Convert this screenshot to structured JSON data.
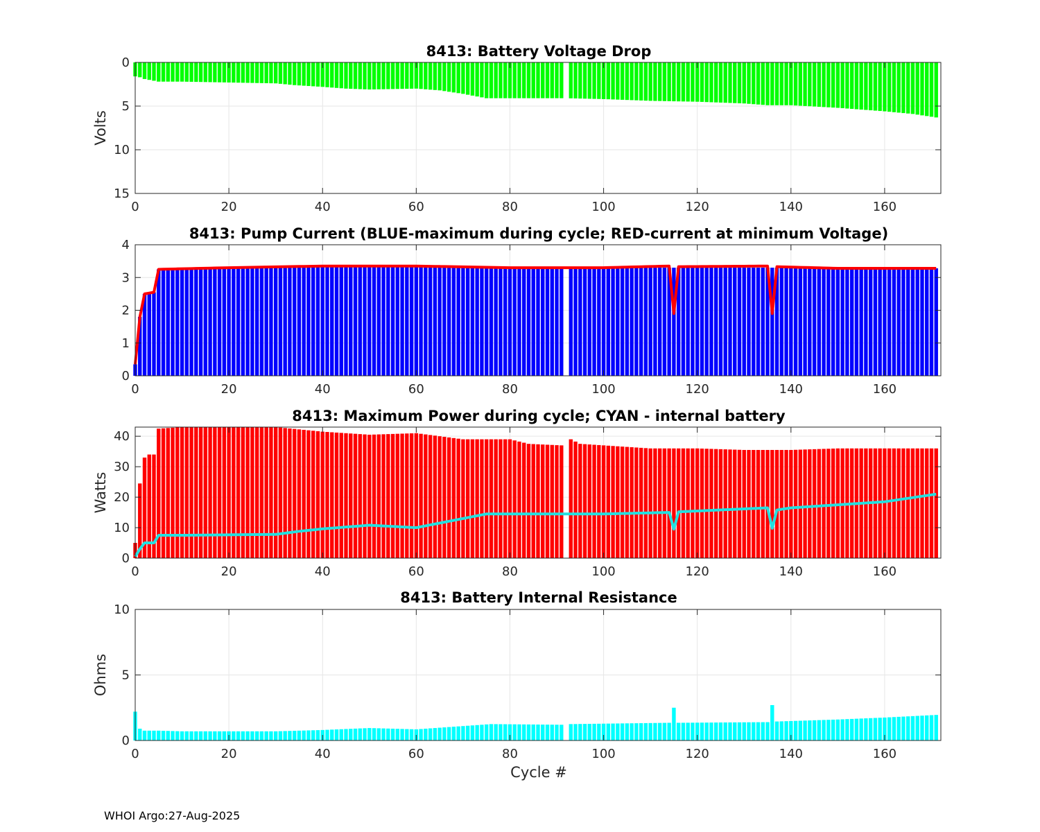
{
  "footer": "WHOI Argo:27-Aug-2025",
  "chart_data": [
    {
      "type": "bar",
      "title": "8413: Battery Voltage Drop",
      "ylabel": "Volts",
      "xlabel": "",
      "xlim": [
        0,
        172
      ],
      "ylim": [
        0,
        15
      ],
      "y_reversed": true,
      "xticks": [
        "0",
        "20",
        "40",
        "60",
        "80",
        "100",
        "120",
        "140",
        "160"
      ],
      "yticks": [
        "0",
        "5",
        "10",
        "15"
      ],
      "grid": true,
      "missing_cycles": [
        92
      ],
      "series": [
        {
          "name": "voltage drop",
          "color": "#00ff00",
          "profile": [
            [
              0,
              1.6
            ],
            [
              1,
              1.7
            ],
            [
              2,
              1.9
            ],
            [
              5,
              2.2
            ],
            [
              10,
              2.2
            ],
            [
              20,
              2.3
            ],
            [
              30,
              2.4
            ],
            [
              34,
              2.6
            ],
            [
              40,
              2.8
            ],
            [
              45,
              3.0
            ],
            [
              50,
              3.1
            ],
            [
              60,
              3.0
            ],
            [
              65,
              3.2
            ],
            [
              70,
              3.6
            ],
            [
              75,
              4.1
            ],
            [
              92,
              4.1
            ],
            [
              100,
              4.2
            ],
            [
              110,
              4.4
            ],
            [
              120,
              4.5
            ],
            [
              130,
              4.7
            ],
            [
              135,
              4.9
            ],
            [
              140,
              4.9
            ],
            [
              150,
              5.2
            ],
            [
              160,
              5.6
            ],
            [
              166,
              5.9
            ],
            [
              171,
              6.3
            ]
          ]
        }
      ]
    },
    {
      "type": "bar",
      "title": "8413: Pump Current (BLUE-maximum during cycle; RED-current at minimum Voltage)",
      "ylabel": "",
      "xlabel": "",
      "xlim": [
        0,
        172
      ],
      "ylim": [
        0,
        4
      ],
      "xticks": [
        "0",
        "20",
        "40",
        "60",
        "80",
        "100",
        "120",
        "140",
        "160"
      ],
      "yticks": [
        "0",
        "1",
        "2",
        "3",
        "4"
      ],
      "grid": true,
      "missing_cycles": [
        92
      ],
      "series": [
        {
          "name": "maximum during cycle",
          "kind": "bar",
          "color": "#0000ff",
          "profile": [
            [
              0,
              0.35
            ],
            [
              1,
              1.8
            ],
            [
              2,
              2.5
            ],
            [
              4,
              2.55
            ],
            [
              5,
              3.25
            ],
            [
              20,
              3.3
            ],
            [
              40,
              3.35
            ],
            [
              60,
              3.35
            ],
            [
              80,
              3.3
            ],
            [
              100,
              3.3
            ],
            [
              120,
              3.3
            ],
            [
              140,
              3.3
            ],
            [
              171,
              3.28
            ]
          ]
        },
        {
          "name": "current at minimum Voltage",
          "kind": "line",
          "color": "#ff0000",
          "profile": [
            [
              0,
              0.35
            ],
            [
              1,
              1.8
            ],
            [
              2,
              2.5
            ],
            [
              4,
              2.55
            ],
            [
              5,
              3.25
            ],
            [
              20,
              3.3
            ],
            [
              40,
              3.35
            ],
            [
              60,
              3.35
            ],
            [
              80,
              3.3
            ],
            [
              100,
              3.3
            ],
            [
              114,
              3.35
            ],
            [
              115,
              1.9
            ],
            [
              116,
              3.33
            ],
            [
              135,
              3.35
            ],
            [
              136,
              1.9
            ],
            [
              137,
              3.33
            ],
            [
              150,
              3.28
            ],
            [
              171,
              3.28
            ]
          ]
        }
      ]
    },
    {
      "type": "bar",
      "title": "8413: Maximum Power during cycle; CYAN - internal battery",
      "ylabel": "Watts",
      "xlabel": "",
      "xlim": [
        0,
        172
      ],
      "ylim": [
        0,
        43
      ],
      "xticks": [
        "0",
        "20",
        "40",
        "60",
        "80",
        "100",
        "120",
        "140",
        "160"
      ],
      "yticks": [
        "0",
        "10",
        "20",
        "30",
        "40"
      ],
      "grid": true,
      "missing_cycles": [
        92
      ],
      "series": [
        {
          "name": "maximum power",
          "kind": "bar",
          "color": "#ff0000",
          "profile": [
            [
              0,
              5
            ],
            [
              1,
              24.5
            ],
            [
              2,
              33
            ],
            [
              3,
              34
            ],
            [
              4,
              34
            ],
            [
              5,
              42.5
            ],
            [
              10,
              43
            ],
            [
              20,
              43
            ],
            [
              30,
              43
            ],
            [
              40,
              41.5
            ],
            [
              50,
              40.5
            ],
            [
              60,
              41
            ],
            [
              70,
              39
            ],
            [
              80,
              39
            ],
            [
              84,
              37.5
            ],
            [
              91,
              37
            ],
            [
              93,
              39
            ],
            [
              95,
              37.5
            ],
            [
              110,
              36
            ],
            [
              120,
              36
            ],
            [
              130,
              35.5
            ],
            [
              140,
              35.5
            ],
            [
              150,
              36
            ],
            [
              160,
              36
            ],
            [
              171,
              36
            ]
          ]
        },
        {
          "name": "internal battery",
          "kind": "line",
          "color": "#22e0e0",
          "profile": [
            [
              0,
              0.5
            ],
            [
              1,
              3
            ],
            [
              2,
              5
            ],
            [
              4,
              5
            ],
            [
              5,
              7.5
            ],
            [
              10,
              7.5
            ],
            [
              30,
              7.8
            ],
            [
              35,
              8.8
            ],
            [
              40,
              9.6
            ],
            [
              50,
              10.8
            ],
            [
              60,
              10
            ],
            [
              70,
              13
            ],
            [
              75,
              14.5
            ],
            [
              100,
              14.5
            ],
            [
              114,
              15
            ],
            [
              115,
              9.5
            ],
            [
              116,
              15.2
            ],
            [
              135,
              16.5
            ],
            [
              136,
              9.8
            ],
            [
              137,
              15.8
            ],
            [
              140,
              16.5
            ],
            [
              150,
              17.5
            ],
            [
              160,
              18.5
            ],
            [
              171,
              21
            ]
          ]
        }
      ]
    },
    {
      "type": "bar",
      "title": "8413: Battery Internal Resistance",
      "ylabel": "Ohms",
      "xlabel": "Cycle #",
      "xlim": [
        0,
        172
      ],
      "ylim": [
        0,
        10
      ],
      "xticks": [
        "0",
        "20",
        "40",
        "60",
        "80",
        "100",
        "120",
        "140",
        "160"
      ],
      "yticks": [
        "0",
        "5",
        "10"
      ],
      "grid": true,
      "missing_cycles": [
        92
      ],
      "series": [
        {
          "name": "internal resistance",
          "color": "#00ffff",
          "profile": [
            [
              0,
              2.2
            ],
            [
              1,
              0.9
            ],
            [
              2,
              0.75
            ],
            [
              5,
              0.75
            ],
            [
              10,
              0.7
            ],
            [
              30,
              0.7
            ],
            [
              40,
              0.8
            ],
            [
              50,
              0.95
            ],
            [
              60,
              0.85
            ],
            [
              70,
              1.1
            ],
            [
              76,
              1.25
            ],
            [
              91,
              1.2
            ],
            [
              93,
              1.25
            ],
            [
              114,
              1.35
            ],
            [
              115,
              2.5
            ],
            [
              116,
              1.35
            ],
            [
              135,
              1.4
            ],
            [
              136,
              2.7
            ],
            [
              137,
              1.45
            ],
            [
              150,
              1.6
            ],
            [
              160,
              1.75
            ],
            [
              171,
              1.95
            ]
          ]
        }
      ]
    }
  ]
}
